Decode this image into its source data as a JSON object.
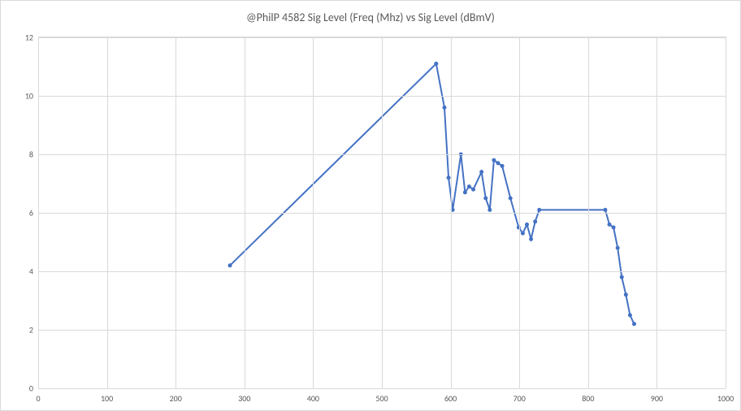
{
  "chart": {
    "type": "line",
    "title": "@PhilP 4582  Sig Level   (Freq (Mhz) vs Sig Level (dBmV)",
    "title_fontsize": 14,
    "title_color": "#595959",
    "background_color": "#ffffff",
    "plot_border_color": "#d9d9d9",
    "grid_color": "#d9d9d9",
    "axis_label_color": "#595959",
    "axis_label_fontsize": 10,
    "xlim": [
      0,
      1000
    ],
    "ylim": [
      0,
      12
    ],
    "xtick_step": 100,
    "ytick_step": 2,
    "xticks": [
      0,
      100,
      200,
      300,
      400,
      500,
      600,
      700,
      800,
      900,
      1000
    ],
    "yticks": [
      0,
      2,
      4,
      6,
      8,
      10,
      12
    ],
    "series": {
      "color": "#4472c4",
      "line_width": 2,
      "marker_style": "circle",
      "marker_size": 5,
      "points": [
        {
          "x": 279,
          "y": 4.2
        },
        {
          "x": 579,
          "y": 11.1
        },
        {
          "x": 591,
          "y": 9.6
        },
        {
          "x": 597,
          "y": 7.2
        },
        {
          "x": 603,
          "y": 6.1
        },
        {
          "x": 615,
          "y": 8.0
        },
        {
          "x": 621,
          "y": 6.7
        },
        {
          "x": 627,
          "y": 6.9
        },
        {
          "x": 633,
          "y": 6.8
        },
        {
          "x": 645,
          "y": 7.4
        },
        {
          "x": 651,
          "y": 6.5
        },
        {
          "x": 657,
          "y": 6.1
        },
        {
          "x": 663,
          "y": 7.8
        },
        {
          "x": 669,
          "y": 7.7
        },
        {
          "x": 675,
          "y": 7.6
        },
        {
          "x": 687,
          "y": 6.5
        },
        {
          "x": 699,
          "y": 5.5
        },
        {
          "x": 705,
          "y": 5.3
        },
        {
          "x": 711,
          "y": 5.6
        },
        {
          "x": 717,
          "y": 5.1
        },
        {
          "x": 723,
          "y": 5.7
        },
        {
          "x": 729,
          "y": 6.1
        },
        {
          "x": 825,
          "y": 6.1
        },
        {
          "x": 831,
          "y": 5.6
        },
        {
          "x": 837,
          "y": 5.5
        },
        {
          "x": 843,
          "y": 4.8
        },
        {
          "x": 849,
          "y": 3.8
        },
        {
          "x": 855,
          "y": 3.2
        },
        {
          "x": 861,
          "y": 2.5
        },
        {
          "x": 867,
          "y": 2.2
        }
      ]
    }
  }
}
